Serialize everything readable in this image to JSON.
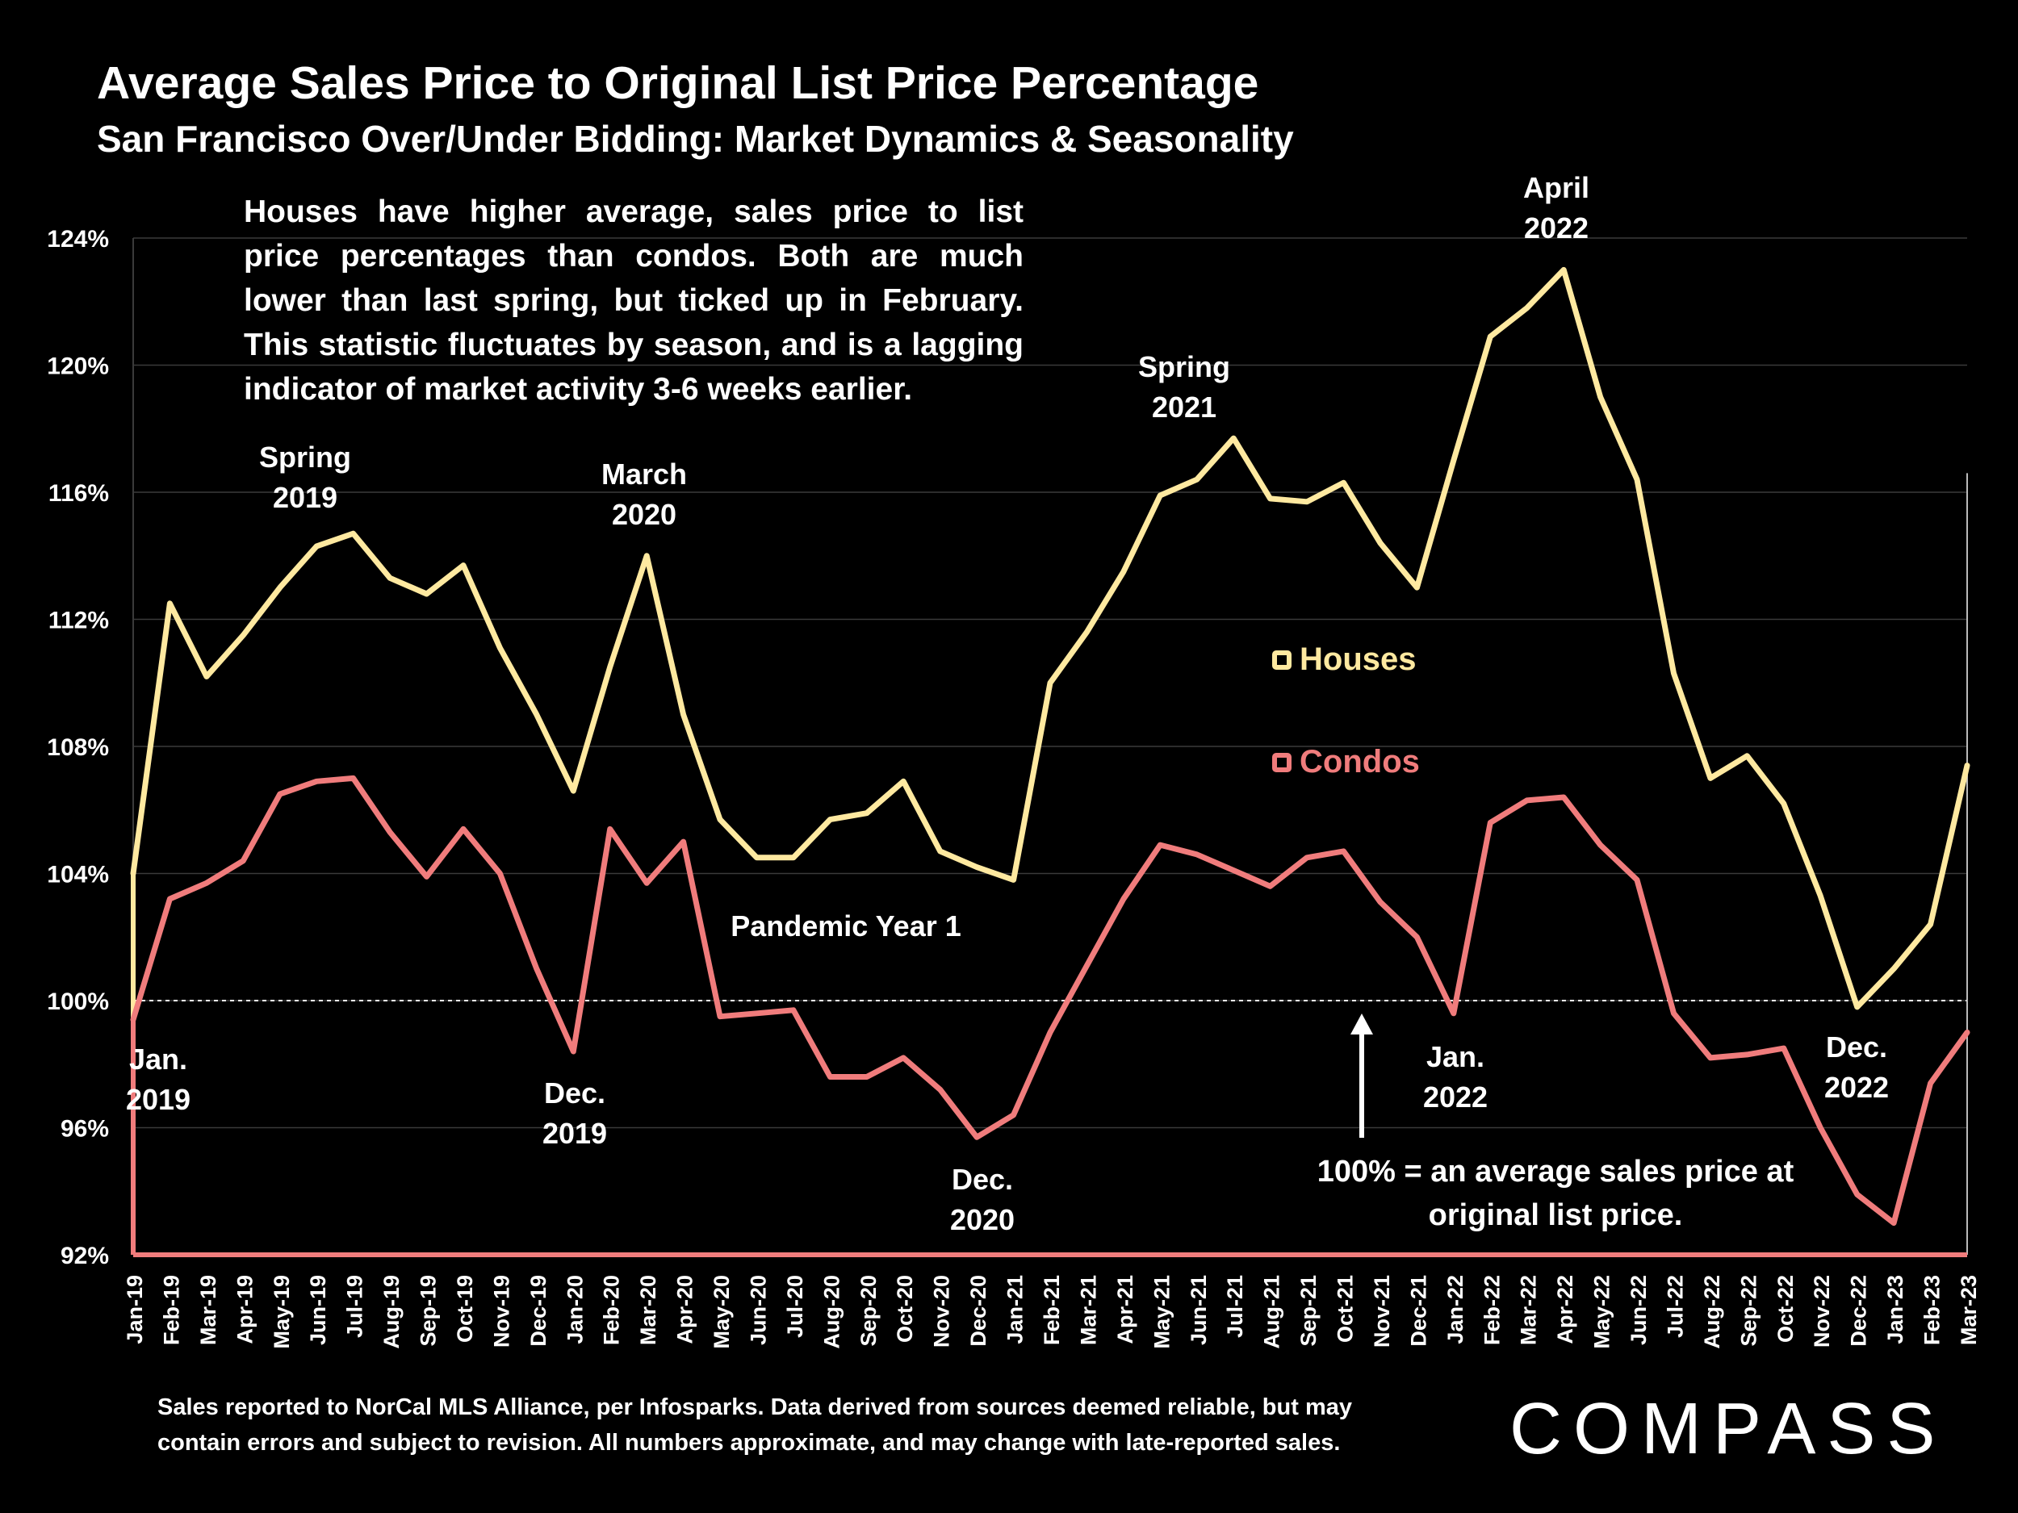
{
  "title": "Average Sales Price to Original List Price Percentage",
  "subtitle": "San Francisco Over/Under Bidding: Market Dynamics & Seasonality",
  "note": "Houses have higher average, sales price to list price percentages than condos. Both are much lower than last spring, but ticked up in February. This statistic fluctuates by season, and is a lagging indicator of market activity 3-6 weeks earlier.",
  "footer": {
    "line1": "Sales reported to NorCal MLS Alliance, per Infosparks. Data derived from sources deemed reliable, but may",
    "line2": "contain errors and subject to revision. All numbers approximate, and may change with late-reported sales."
  },
  "logo": "COMPASS",
  "legend": {
    "houses": "Houses",
    "condos": "Condos"
  },
  "annotations": {
    "jan2019": [
      "Jan.",
      "2019"
    ],
    "spring2019": [
      "Spring",
      "2019"
    ],
    "dec2019": [
      "Dec.",
      "2019"
    ],
    "march2020": [
      "March",
      "2020"
    ],
    "pandemic": [
      "Pandemic Year 1"
    ],
    "dec2020": [
      "Dec.",
      "2020"
    ],
    "spring2021": [
      "Spring",
      "2021"
    ],
    "jan2022": [
      "Jan.",
      "2022"
    ],
    "april2022": [
      "April",
      "2022"
    ],
    "dec2022": [
      "Dec.",
      "2022"
    ],
    "baseline_note": [
      "100% = an average sales price at",
      "original list price."
    ]
  },
  "colors": {
    "background": "#000000",
    "houses": "#FFE9A0",
    "condos": "#F07C7C",
    "text": "#FFFFFF",
    "grid": "#3a3a3a"
  },
  "chart_data": {
    "type": "line",
    "ylim": [
      92,
      124
    ],
    "yticks": [
      "92%",
      "96%",
      "100%",
      "104%",
      "108%",
      "112%",
      "116%",
      "120%",
      "124%"
    ],
    "reference_line": 100,
    "grid": true,
    "legend_position": "center-right",
    "categories": [
      "Jan-19",
      "Feb-19",
      "Mar-19",
      "Apr-19",
      "May-19",
      "Jun-19",
      "Jul-19",
      "Aug-19",
      "Sep-19",
      "Oct-19",
      "Nov-19",
      "Dec-19",
      "Jan-20",
      "Feb-20",
      "Mar-20",
      "Apr-20",
      "May-20",
      "Jun-20",
      "Jul-20",
      "Aug-20",
      "Sep-20",
      "Oct-20",
      "Nov-20",
      "Dec-20",
      "Jan-21",
      "Feb-21",
      "Mar-21",
      "Apr-21",
      "May-21",
      "Jun-21",
      "Jul-21",
      "Aug-21",
      "Sep-21",
      "Oct-21",
      "Nov-21",
      "Dec-21",
      "Jan-22",
      "Feb-22",
      "Mar-22",
      "Apr-22",
      "May-22",
      "Jun-22",
      "Jul-22",
      "Aug-22",
      "Sep-22",
      "Oct-22",
      "Nov-22",
      "Dec-22",
      "Jan-23",
      "Feb-23",
      "Mar-23"
    ],
    "series": [
      {
        "name": "Houses",
        "values": [
          104.0,
          112.5,
          110.2,
          111.5,
          113.0,
          114.3,
          114.7,
          113.3,
          112.8,
          113.7,
          111.1,
          109.0,
          106.6,
          110.5,
          114.0,
          109.0,
          105.7,
          104.5,
          104.5,
          105.7,
          105.9,
          106.9,
          104.7,
          104.2,
          103.8,
          110.0,
          111.6,
          113.5,
          115.9,
          116.4,
          117.7,
          115.8,
          115.7,
          116.3,
          114.4,
          113.0,
          117.0,
          120.9,
          121.8,
          123.0,
          119.0,
          116.4,
          110.3,
          107.0,
          107.7,
          106.2,
          103.3,
          99.8,
          101.0,
          102.4,
          107.4
        ]
      },
      {
        "name": "Condos",
        "values": [
          99.4,
          103.2,
          103.7,
          104.4,
          106.5,
          106.9,
          107.0,
          105.3,
          103.9,
          105.4,
          104.0,
          101.0,
          98.4,
          105.4,
          103.7,
          105.0,
          99.5,
          99.6,
          99.7,
          97.6,
          97.6,
          98.2,
          97.2,
          95.7,
          96.4,
          99.0,
          101.1,
          103.2,
          104.9,
          104.6,
          104.1,
          103.6,
          104.5,
          104.7,
          103.1,
          102.0,
          99.6,
          105.6,
          106.3,
          106.4,
          104.9,
          103.8,
          99.6,
          98.2,
          98.3,
          98.5,
          96.0,
          93.9,
          93.0,
          97.4,
          99.0
        ]
      }
    ]
  }
}
